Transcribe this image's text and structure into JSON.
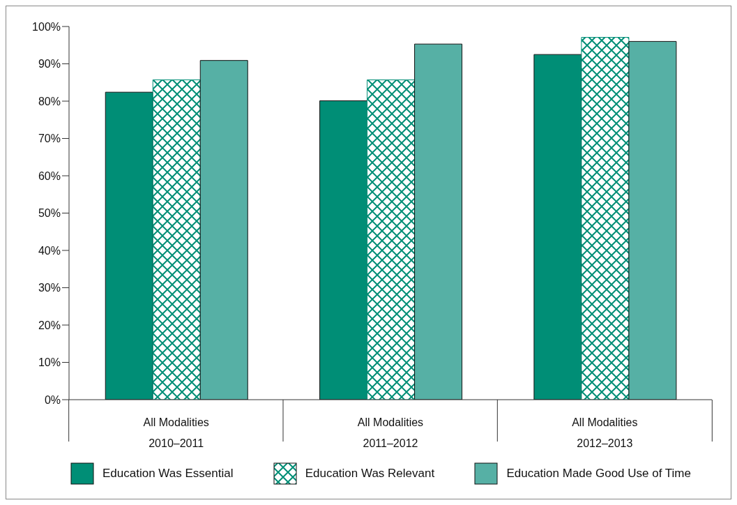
{
  "chart_data": {
    "type": "bar",
    "categories": [
      "All Modalities\n2010–2011",
      "All Modalities\n2011–2012",
      "All Modalities\n2012–2013"
    ],
    "series": [
      {
        "name": "Education Was Essential",
        "color": "#008e76",
        "values": [
          82.4,
          80.1,
          92.5
        ]
      },
      {
        "name": "Education Was Relevant",
        "color": "#008e76",
        "values": [
          85.7,
          85.7,
          97.1
        ]
      },
      {
        "name": "Education Made Good Use of Time",
        "color": "#56b0a5",
        "values": [
          90.9,
          95.3,
          96
        ]
      }
    ],
    "ylim": [
      0,
      100
    ],
    "yticks": [
      {
        "value": 0,
        "label": "0%"
      },
      {
        "value": 10,
        "label": "10%"
      },
      {
        "value": 20,
        "label": "20%"
      },
      {
        "value": 30,
        "label": "30%"
      },
      {
        "value": 40,
        "label": "40%"
      },
      {
        "value": 50,
        "label": "50%"
      },
      {
        "value": 60,
        "label": "60%"
      },
      {
        "value": 70,
        "label": "70%"
      },
      {
        "value": 80,
        "label": "80%"
      },
      {
        "value": 90,
        "label": "90%"
      },
      {
        "value": 100,
        "label": "100%"
      }
    ],
    "grid": false,
    "legend": "bottom"
  }
}
